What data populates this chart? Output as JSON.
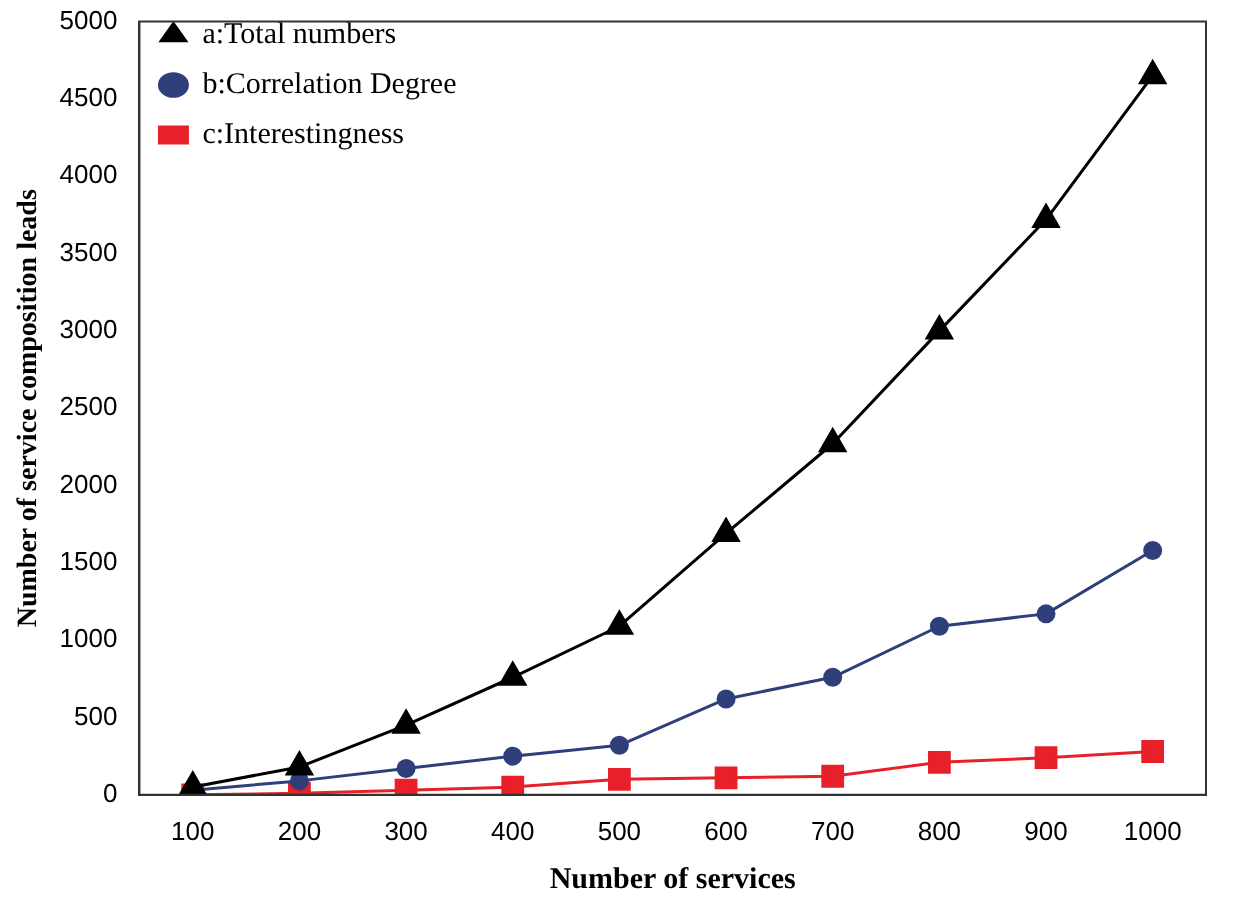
{
  "chart_data": {
    "type": "line",
    "xlabel": "Number of services",
    "ylabel": "Number of service composition leads",
    "categories": [
      "100",
      "200",
      "300",
      "400",
      "500",
      "600",
      "700",
      "800",
      "900",
      "1000"
    ],
    "ylim": [
      0,
      5000
    ],
    "yticks": [
      0,
      500,
      1000,
      1500,
      2000,
      2500,
      3000,
      3500,
      4000,
      4500,
      5000
    ],
    "grid": false,
    "legend": "top left",
    "series": [
      {
        "name": "a:Total numbers",
        "color": "#000000",
        "marker": "triangle",
        "values": [
          50,
          180,
          450,
          760,
          1090,
          1690,
          2270,
          3000,
          3720,
          4650
        ]
      },
      {
        "name": "b:Correlation Degree",
        "color": "#2e3f7a",
        "marker": "circle",
        "values": [
          30,
          90,
          170,
          250,
          320,
          620,
          760,
          1090,
          1170,
          1580
        ]
      },
      {
        "name": "c:Interestingness",
        "color": "#e8202a",
        "marker": "square",
        "values": [
          0,
          10,
          30,
          50,
          100,
          110,
          120,
          210,
          240,
          280
        ]
      }
    ]
  }
}
